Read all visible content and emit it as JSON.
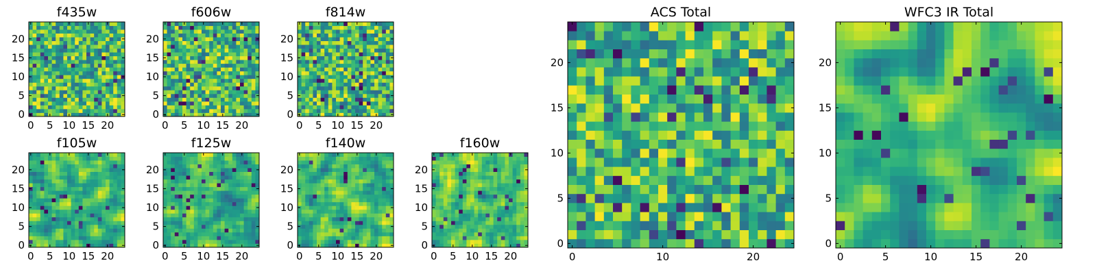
{
  "chart_data": [
    {
      "type": "heatmap",
      "title": "f435w",
      "grid_size": 25,
      "xlim": [
        0,
        24
      ],
      "ylim": [
        0,
        24
      ],
      "xticks": [
        0,
        5,
        10,
        15,
        20
      ],
      "yticks": [
        0,
        5,
        10,
        15,
        20
      ],
      "colormap": "viridis",
      "noise_scale": 1,
      "seed": 1
    },
    {
      "type": "heatmap",
      "title": "f606w",
      "grid_size": 25,
      "xlim": [
        0,
        24
      ],
      "ylim": [
        0,
        24
      ],
      "xticks": [
        0,
        5,
        10,
        15,
        20
      ],
      "yticks": [
        0,
        5,
        10,
        15,
        20
      ],
      "colormap": "viridis",
      "noise_scale": 1,
      "seed": 2
    },
    {
      "type": "heatmap",
      "title": "f814w",
      "grid_size": 25,
      "xlim": [
        0,
        24
      ],
      "ylim": [
        0,
        24
      ],
      "xticks": [
        0,
        5,
        10,
        15,
        20
      ],
      "yticks": [
        0,
        5,
        10,
        15,
        20
      ],
      "colormap": "viridis",
      "noise_scale": 1,
      "seed": 3
    },
    {
      "type": "heatmap",
      "title": "f105w",
      "grid_size": 25,
      "xlim": [
        0,
        24
      ],
      "ylim": [
        0,
        24
      ],
      "xticks": [
        0,
        5,
        10,
        15,
        20
      ],
      "yticks": [
        0,
        5,
        10,
        15,
        20
      ],
      "colormap": "viridis",
      "noise_scale": 2,
      "seed": 4
    },
    {
      "type": "heatmap",
      "title": "f125w",
      "grid_size": 25,
      "xlim": [
        0,
        24
      ],
      "ylim": [
        0,
        24
      ],
      "xticks": [
        0,
        5,
        10,
        15,
        20
      ],
      "yticks": [
        0,
        5,
        10,
        15,
        20
      ],
      "colormap": "viridis",
      "noise_scale": 2,
      "seed": 5
    },
    {
      "type": "heatmap",
      "title": "f140w",
      "grid_size": 25,
      "xlim": [
        0,
        24
      ],
      "ylim": [
        0,
        24
      ],
      "xticks": [
        0,
        5,
        10,
        15,
        20
      ],
      "yticks": [
        0,
        5,
        10,
        15,
        20
      ],
      "colormap": "viridis",
      "noise_scale": 2,
      "seed": 6
    },
    {
      "type": "heatmap",
      "title": "f160w",
      "grid_size": 25,
      "xlim": [
        0,
        24
      ],
      "ylim": [
        0,
        24
      ],
      "xticks": [
        0,
        5,
        10,
        15,
        20
      ],
      "yticks": [
        0,
        5,
        10,
        15,
        20
      ],
      "colormap": "viridis",
      "noise_scale": 2,
      "seed": 7
    },
    {
      "type": "heatmap",
      "title": "ACS Total",
      "grid_size": 25,
      "xlim": [
        0,
        24
      ],
      "ylim": [
        0,
        24
      ],
      "xticks": [
        0,
        10,
        20
      ],
      "yticks": [
        0,
        5,
        10,
        15,
        20
      ],
      "colormap": "viridis",
      "noise_scale": 1,
      "seed": 8
    },
    {
      "type": "heatmap",
      "title": "WFC3 IR Total",
      "grid_size": 25,
      "xlim": [
        0,
        24
      ],
      "ylim": [
        0,
        24
      ],
      "xticks": [
        0,
        5,
        10,
        15,
        20
      ],
      "yticks": [
        0,
        5,
        10,
        15,
        20
      ],
      "colormap": "viridis",
      "noise_scale": 3,
      "seed": 9
    }
  ]
}
